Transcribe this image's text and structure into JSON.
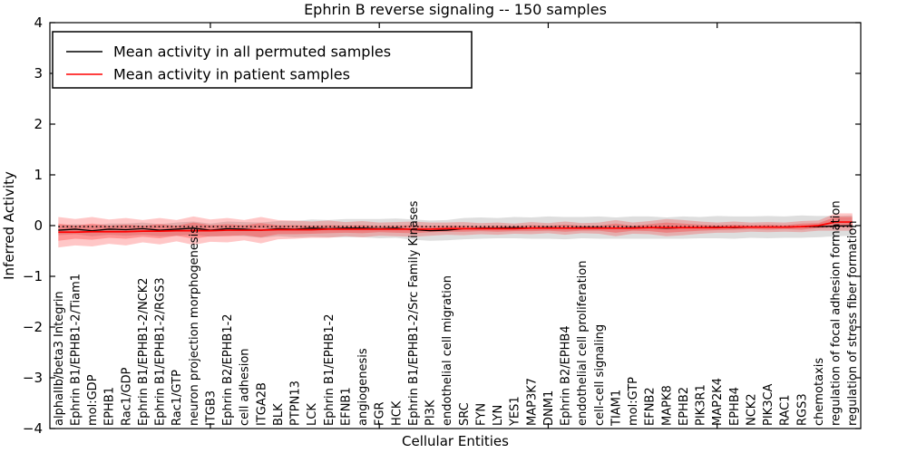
{
  "figure": {
    "title": "Ephrin B reverse signaling -- 150 samples",
    "xlabel": "Cellular Entities",
    "ylabel": "Inferred Activity"
  },
  "legend": {
    "items": [
      {
        "label": "Mean activity in all permuted samples",
        "color": "#000000"
      },
      {
        "label": "Mean activity in patient samples",
        "color": "#ff0000"
      }
    ]
  },
  "chart_data": {
    "type": "line",
    "title": "Ephrin B reverse signaling -- 150 samples",
    "xlabel": "Cellular Entities",
    "ylabel": "Inferred Activity",
    "ylim": [
      -4,
      4
    ],
    "grid": false,
    "legend_position": "upper left",
    "background": "#ffffff",
    "yticks": [
      {
        "v": 4,
        "label": "4"
      },
      {
        "v": 3,
        "label": "3"
      },
      {
        "v": 2,
        "label": "2"
      },
      {
        "v": 1,
        "label": "1"
      },
      {
        "v": 0,
        "label": "0"
      },
      {
        "v": -1,
        "label": "−1"
      },
      {
        "v": -2,
        "label": "−2"
      },
      {
        "v": -3,
        "label": "−3"
      },
      {
        "v": -4,
        "label": "−4"
      }
    ],
    "xtick_marks_at_index": [
      9,
      19,
      29,
      39
    ],
    "categories": [
      "alphaIIb/beta3 Integrin",
      "Ephrin B1/EPHB1-2/Tiam1",
      "mol:GDP",
      "EPHB1",
      "Rac1/GDP",
      "Ephrin B1/EPHB1-2/NCK2",
      "Ephrin B1/EPHB1-2/RGS3",
      "Rac1/GTP",
      "neuron projection morphogenesis",
      "ITGB3",
      "Ephrin B2/EPHB1-2",
      "cell adhesion",
      "ITGA2B",
      "BLK",
      "PTPN13",
      "LCK",
      "Ephrin B1/EPHB1-2",
      "EFNB1",
      "angiogenesis",
      "FGR",
      "HCK",
      "Ephrin B1/EPHB1-2/Src Family Kinases",
      "PI3K",
      "endothelial cell migration",
      "SRC",
      "FYN",
      "LYN",
      "YES1",
      "MAP3K7",
      "DNM1",
      "Ephrin B2/EPHB4",
      "endothelial cell proliferation",
      "cell-cell signaling",
      "TIAM1",
      "mol:GTP",
      "EFNB2",
      "MAPK8",
      "EPHB2",
      "PIK3R1",
      "MAP2K4",
      "EPHB4",
      "NCK2",
      "PIK3CA",
      "RAC1",
      "RGS3",
      "chemotaxis",
      "regulation of focal adhesion formation",
      "regulation of stress fiber formation"
    ],
    "series": [
      {
        "name": "Mean activity in all permuted samples",
        "color": "#000000",
        "style": "solid",
        "width": 1.3,
        "values": [
          -0.09,
          -0.07,
          -0.1,
          -0.07,
          -0.08,
          -0.06,
          -0.09,
          -0.07,
          -0.05,
          -0.09,
          -0.06,
          -0.07,
          -0.09,
          -0.06,
          -0.07,
          -0.05,
          -0.06,
          -0.05,
          -0.05,
          -0.06,
          -0.05,
          -0.08,
          -0.1,
          -0.09,
          -0.06,
          -0.05,
          -0.05,
          -0.04,
          -0.05,
          -0.04,
          -0.05,
          -0.04,
          -0.04,
          -0.05,
          -0.04,
          -0.04,
          -0.05,
          -0.04,
          -0.04,
          -0.03,
          -0.04,
          -0.03,
          -0.03,
          -0.03,
          -0.02,
          -0.02,
          -0.01,
          0.0
        ]
      },
      {
        "name": "Mean activity in patient samples",
        "color": "#ff0000",
        "style": "solid",
        "width": 1.7,
        "values": [
          -0.13,
          -0.13,
          -0.12,
          -0.12,
          -0.12,
          -0.11,
          -0.11,
          -0.1,
          -0.1,
          -0.1,
          -0.09,
          -0.09,
          -0.09,
          -0.08,
          -0.08,
          -0.08,
          -0.07,
          -0.07,
          -0.07,
          -0.07,
          -0.07,
          -0.07,
          -0.07,
          -0.06,
          -0.06,
          -0.06,
          -0.06,
          -0.06,
          -0.05,
          -0.05,
          -0.05,
          -0.05,
          -0.05,
          -0.05,
          -0.05,
          -0.04,
          -0.04,
          -0.04,
          -0.04,
          -0.04,
          -0.03,
          -0.03,
          -0.03,
          -0.03,
          -0.02,
          0.0,
          0.07,
          0.07
        ]
      }
    ],
    "reference_line": {
      "value": -0.02,
      "color": "#000000",
      "style": "dotted"
    },
    "bands": [
      {
        "name": "permuted-samples-spread",
        "color": "rgba(0,0,0,0.13)",
        "center_series": 0,
        "halfwidths": [
          0.1,
          0.1,
          0.11,
          0.11,
          0.12,
          0.12,
          0.12,
          0.13,
          0.13,
          0.13,
          0.14,
          0.14,
          0.15,
          0.15,
          0.16,
          0.17,
          0.17,
          0.18,
          0.18,
          0.19,
          0.19,
          0.2,
          0.2,
          0.2,
          0.21,
          0.21,
          0.2,
          0.21,
          0.21,
          0.22,
          0.22,
          0.21,
          0.22,
          0.21,
          0.22,
          0.22,
          0.21,
          0.22,
          0.21,
          0.22,
          0.22,
          0.21,
          0.22,
          0.21,
          0.22,
          0.21,
          0.2,
          0.2
        ]
      },
      {
        "name": "patient-samples-spread-outer",
        "color": "rgba(255,0,0,0.22)",
        "center_series": 1,
        "halfwidths": [
          0.3,
          0.26,
          0.29,
          0.24,
          0.27,
          0.22,
          0.26,
          0.21,
          0.28,
          0.22,
          0.24,
          0.2,
          0.26,
          0.19,
          0.18,
          0.16,
          0.17,
          0.14,
          0.16,
          0.13,
          0.14,
          0.15,
          0.13,
          0.12,
          0.13,
          0.11,
          0.12,
          0.1,
          0.12,
          0.1,
          0.13,
          0.1,
          0.11,
          0.16,
          0.11,
          0.13,
          0.17,
          0.15,
          0.12,
          0.1,
          0.11,
          0.09,
          0.1,
          0.09,
          0.11,
          0.1,
          0.17,
          0.17
        ]
      },
      {
        "name": "patient-samples-spread-inner",
        "color": "rgba(255,0,0,0.25)",
        "center_series": 1,
        "halfwidths": [
          0.17,
          0.13,
          0.16,
          0.12,
          0.14,
          0.11,
          0.14,
          0.1,
          0.16,
          0.11,
          0.12,
          0.1,
          0.14,
          0.09,
          0.09,
          0.08,
          0.08,
          0.07,
          0.08,
          0.06,
          0.07,
          0.08,
          0.06,
          0.06,
          0.06,
          0.05,
          0.06,
          0.05,
          0.06,
          0.05,
          0.07,
          0.05,
          0.05,
          0.09,
          0.05,
          0.07,
          0.1,
          0.08,
          0.06,
          0.05,
          0.05,
          0.04,
          0.05,
          0.04,
          0.06,
          0.05,
          0.1,
          0.1
        ]
      }
    ]
  }
}
